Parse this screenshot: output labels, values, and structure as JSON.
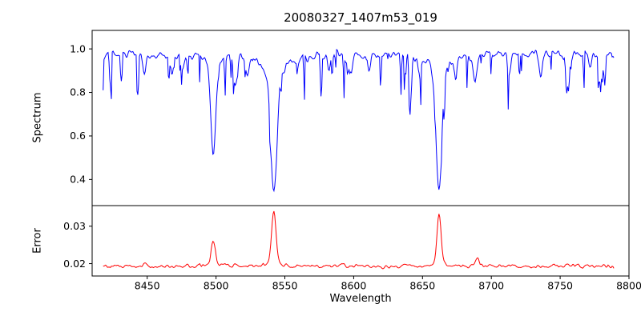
{
  "title": "20080327_1407m53_019",
  "axes": {
    "xlabel": "Wavelength",
    "ylabel_top": "Spectrum",
    "ylabel_bottom": "Error",
    "axis_color": "#000000",
    "background": "#ffffff"
  },
  "chart_data": [
    {
      "type": "line",
      "panel": "top",
      "series_name": "spectrum",
      "color": "#0000ff",
      "xlim": [
        8410,
        8800
      ],
      "ylim": [
        0.28,
        1.085
      ],
      "yticks": [
        0.4,
        0.6,
        0.8,
        1.0
      ],
      "ytick_labels": [
        "0.4",
        "0.6",
        "0.8",
        "1.0"
      ],
      "x_range": [
        8418,
        8789
      ],
      "continuum": 0.972,
      "noise_amplitude": 0.02,
      "absorption_lines": [
        {
          "center": 8498,
          "min_flux": 0.52,
          "depth": 0.38,
          "sigma": 1.8,
          "wing": 0.07,
          "gamma": 5
        },
        {
          "center": 8542,
          "min_flux": 0.33,
          "depth": 0.52,
          "sigma": 2.2,
          "wing": 0.12,
          "gamma": 7
        },
        {
          "center": 8662,
          "min_flux": 0.35,
          "depth": 0.5,
          "sigma": 2.0,
          "wing": 0.12,
          "gamma": 6
        }
      ],
      "minor_lines": [
        {
          "center": 8448,
          "depth": 0.1,
          "sigma": 1.2
        },
        {
          "center": 8468,
          "depth": 0.07,
          "sigma": 1.0
        },
        {
          "center": 8476,
          "depth": 0.06,
          "sigma": 1.0
        },
        {
          "center": 8514,
          "depth": 0.15,
          "sigma": 1.3
        },
        {
          "center": 8523,
          "depth": 0.08,
          "sigma": 1.0
        },
        {
          "center": 8582,
          "depth": 0.06,
          "sigma": 1.0
        },
        {
          "center": 8598,
          "depth": 0.07,
          "sigma": 1.2
        },
        {
          "center": 8611,
          "depth": 0.06,
          "sigma": 1.0
        },
        {
          "center": 8648,
          "depth": 0.07,
          "sigma": 1.0
        },
        {
          "center": 8674,
          "depth": 0.08,
          "sigma": 1.0
        },
        {
          "center": 8688,
          "depth": 0.13,
          "sigma": 1.3
        },
        {
          "center": 8713,
          "depth": 0.07,
          "sigma": 1.0
        },
        {
          "center": 8736,
          "depth": 0.08,
          "sigma": 1.0
        },
        {
          "center": 8757,
          "depth": 0.07,
          "sigma": 1.0
        },
        {
          "center": 8772,
          "depth": 0.06,
          "sigma": 1.0
        }
      ]
    },
    {
      "type": "line",
      "panel": "bottom",
      "series_name": "error",
      "color": "#ff0000",
      "xlim": [
        8410,
        8800
      ],
      "ylim": [
        0.0167,
        0.0355
      ],
      "xticks": [
        8450,
        8500,
        8550,
        8600,
        8650,
        8700,
        8750,
        8800
      ],
      "xtick_labels": [
        "8450",
        "8500",
        "8550",
        "8600",
        "8650",
        "8700",
        "8750",
        "8800"
      ],
      "yticks": [
        0.02,
        0.03
      ],
      "ytick_labels": [
        "0.02",
        "0.03"
      ],
      "x_range": [
        8418,
        8789
      ],
      "baseline": 0.0193,
      "noise_amplitude": 0.00045,
      "peaks": [
        {
          "center": 8498,
          "height": 0.0062,
          "sigma": 1.5
        },
        {
          "center": 8542,
          "height": 0.014,
          "sigma": 1.6
        },
        {
          "center": 8662,
          "height": 0.0132,
          "sigma": 1.5
        },
        {
          "center": 8690,
          "height": 0.0022,
          "sigma": 1.2
        },
        {
          "center": 8514,
          "height": 0.0012,
          "sigma": 1.2
        },
        {
          "center": 8448,
          "height": 0.0008,
          "sigma": 1.0
        }
      ]
    }
  ]
}
